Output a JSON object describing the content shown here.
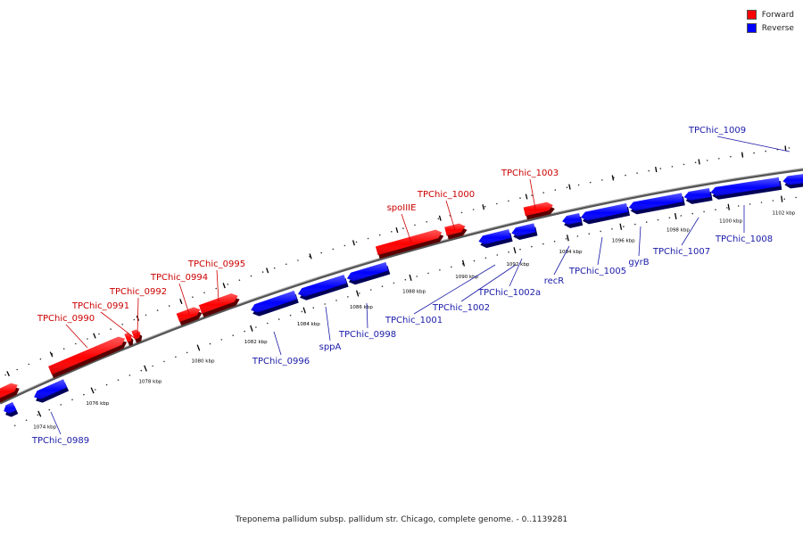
{
  "legend": {
    "forward": {
      "label": "Forward",
      "color": "#ff0000"
    },
    "reverse": {
      "label": "Reverse",
      "color": "#0000ff"
    }
  },
  "caption": "Treponema pallidum subsp. pallidum str. Chicago, complete genome. - 0..1139281",
  "ruler": {
    "ticks": [
      "1074 kbp",
      "1076 kbp",
      "1078 kbp",
      "1080 kbp",
      "1082 kbp",
      "1084 kbp",
      "1086 kbp",
      "1088 kbp",
      "1090 kbp",
      "1092 kbp",
      "1094 kbp",
      "1096 kbp",
      "1098 kbp",
      "1100 kbp",
      "1102 kbp"
    ]
  },
  "genes": {
    "forward": [
      "TPChic_0990",
      "TPChic_0991",
      "TPChic_0992",
      "TPChic_0994",
      "TPChic_0995",
      "spoIIIE",
      "TPChic_1000",
      "TPChic_1003"
    ],
    "reverse": [
      "TPChic_0989",
      "TPChic_0996",
      "sppA",
      "TPChic_0998",
      "TPChic_1001",
      "TPChic_1002",
      "TPChic_1002a",
      "recR",
      "TPChic_1005",
      "gyrB",
      "TPChic_1007",
      "TPChic_1008",
      "TPChic_1009"
    ]
  }
}
